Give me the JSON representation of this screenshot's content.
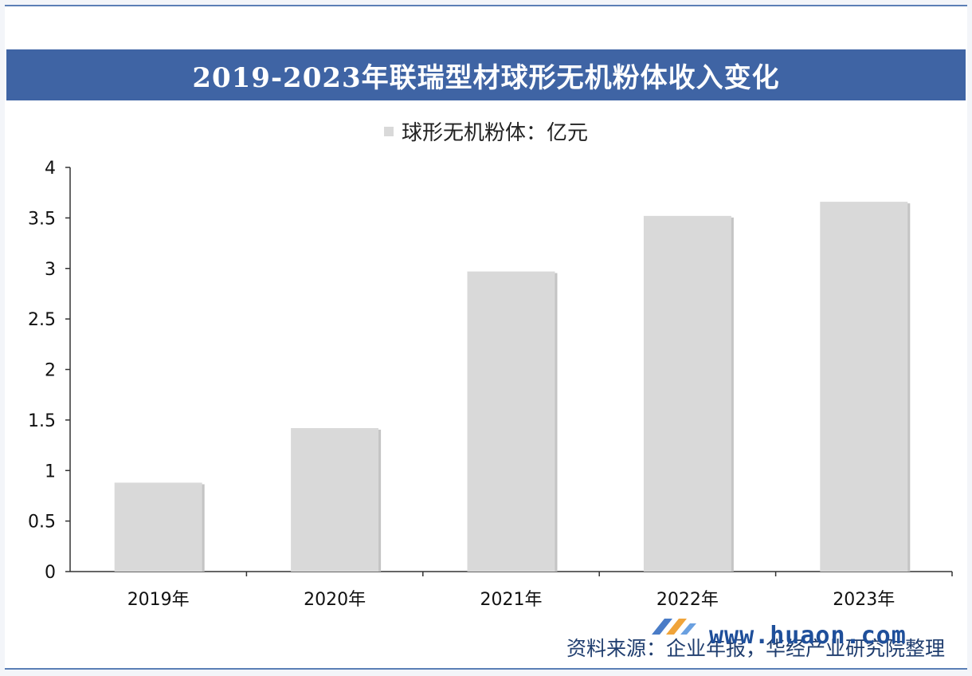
{
  "header": {
    "title": "2019-2023年联瑞型材球形无机粉体收入变化"
  },
  "footer": {
    "source": "资料来源：企业年报，华经产业研究院整理",
    "site": "www.huaon.com"
  },
  "chart_data": {
    "type": "bar",
    "title": "2019-2023年联瑞型材球形无机粉体收入变化",
    "categories": [
      "2019年",
      "2020年",
      "2021年",
      "2022年",
      "2023年"
    ],
    "series": [
      {
        "name": "球形无机粉体：亿元",
        "values": [
          0.88,
          1.42,
          2.97,
          3.52,
          3.66
        ],
        "color": "#d9d9d9"
      }
    ],
    "ylim": [
      0,
      4
    ],
    "yticks": [
      "0",
      "0.5",
      "1",
      "1.5",
      "2",
      "2.5",
      "3",
      "3.5",
      "4"
    ],
    "xlabel": "",
    "ylabel": "",
    "grid": false,
    "legend": "top"
  }
}
